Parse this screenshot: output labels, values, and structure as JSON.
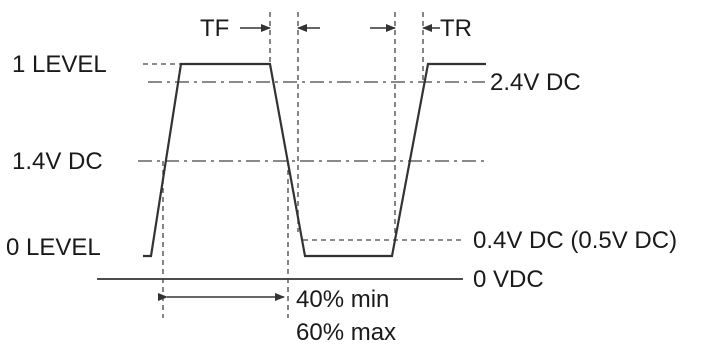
{
  "diagram": {
    "labels": {
      "one_level": "1 LEVEL",
      "zero_level": "0 LEVEL",
      "mid_threshold": "1.4V DC",
      "high_threshold": "2.4V DC",
      "low_threshold": "0.4V DC (0.5V DC)",
      "ground": "0 VDC",
      "fall_time": "TF",
      "rise_time": "TR",
      "duty_min": "40% min",
      "duty_max": "60% max"
    }
  }
}
